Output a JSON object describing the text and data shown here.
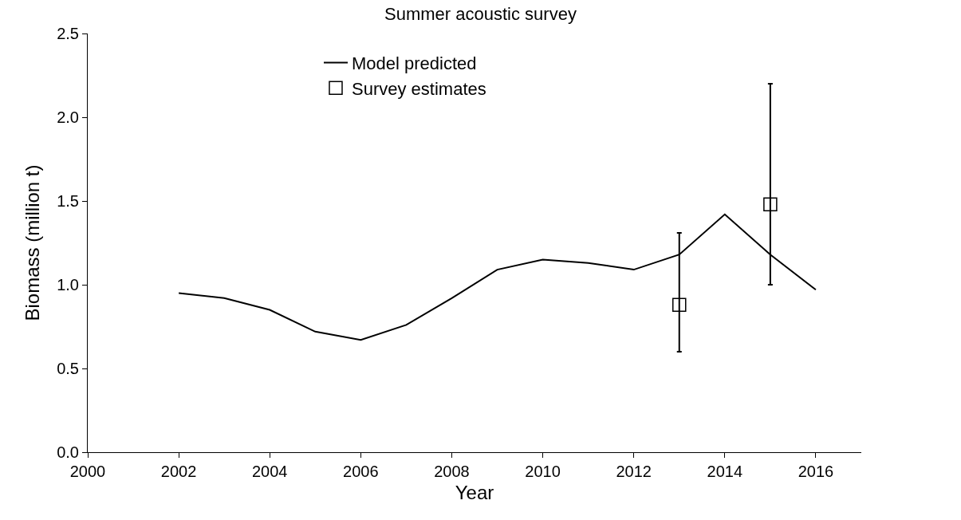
{
  "chart_data": {
    "type": "line",
    "title": "Summer acoustic survey",
    "xlabel": "Year",
    "ylabel": "Biomass (million t)",
    "xlim": [
      2000,
      2017
    ],
    "xticks": [
      2000,
      2002,
      2004,
      2006,
      2008,
      2010,
      2012,
      2014,
      2016
    ],
    "ylim": [
      0,
      2.5
    ],
    "yticks": [
      {
        "value": 0,
        "label": "0.0"
      },
      {
        "value": 0.5,
        "label": "0.5"
      },
      {
        "value": 1,
        "label": "1.0"
      },
      {
        "value": 1.5,
        "label": "1.5"
      },
      {
        "value": 2,
        "label": "2.0"
      },
      {
        "value": 2.5,
        "label": "2.5"
      }
    ],
    "grid": false,
    "legend": "top",
    "line_style": "solid",
    "series": [
      {
        "name": "Model predicted",
        "color": "#000000",
        "marker": "none",
        "x": [
          2002,
          2003,
          2004,
          2005,
          2006,
          2007,
          2008,
          2009,
          2010,
          2011,
          2012,
          2013,
          2014,
          2015,
          2016
        ],
        "values": [
          0.95,
          0.92,
          0.85,
          0.72,
          0.67,
          0.76,
          0.92,
          1.09,
          1.15,
          1.13,
          1.09,
          1.18,
          1.42,
          1.18,
          0.97
        ]
      },
      {
        "name": "Survey estimates",
        "type": "scatter",
        "color": "#000000",
        "marker": "square",
        "x": [
          2013,
          2015
        ],
        "values": [
          0.88,
          1.48
        ],
        "errors": [
          [
            0.6,
            1.31
          ],
          [
            1.0,
            2.2
          ]
        ]
      }
    ]
  }
}
